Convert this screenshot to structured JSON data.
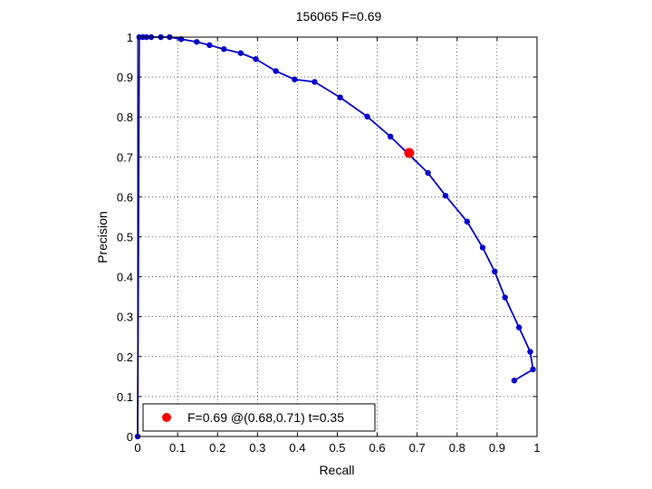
{
  "chart_data": {
    "type": "line",
    "title": "156065 F=0.69",
    "xlabel": "Recall",
    "ylabel": "Precision",
    "xlim": [
      0,
      1
    ],
    "ylim": [
      0,
      1
    ],
    "xticks": [
      0,
      0.1,
      0.2,
      0.3,
      0.4,
      0.5,
      0.6,
      0.7,
      0.8,
      0.9,
      1
    ],
    "yticks": [
      0,
      0.1,
      0.2,
      0.3,
      0.4,
      0.5,
      0.6,
      0.7,
      0.8,
      0.9,
      1
    ],
    "xtick_labels": [
      "0",
      "0.1",
      "0.2",
      "0.3",
      "0.4",
      "0.5",
      "0.6",
      "0.7",
      "0.8",
      "0.9",
      "1"
    ],
    "ytick_labels": [
      "0",
      "0.1",
      "0.2",
      "0.3",
      "0.4",
      "0.5",
      "0.6",
      "0.7",
      "0.8",
      "0.9",
      "1"
    ],
    "grid": true,
    "legend_position": "bottom-left",
    "series": [
      {
        "color": "#0000cc",
        "marker": "dot",
        "points": [
          [
            0.943,
            0.14
          ],
          [
            0.99,
            0.168
          ],
          [
            0.983,
            0.212
          ],
          [
            0.955,
            0.273
          ],
          [
            0.92,
            0.348
          ],
          [
            0.894,
            0.413
          ],
          [
            0.864,
            0.473
          ],
          [
            0.825,
            0.538
          ],
          [
            0.771,
            0.603
          ],
          [
            0.727,
            0.66
          ],
          [
            0.633,
            0.751
          ],
          [
            0.575,
            0.801
          ],
          [
            0.507,
            0.849
          ],
          [
            0.443,
            0.888
          ],
          [
            0.393,
            0.894
          ],
          [
            0.346,
            0.915
          ],
          [
            0.296,
            0.945
          ],
          [
            0.258,
            0.96
          ],
          [
            0.216,
            0.97
          ],
          [
            0.18,
            0.98
          ],
          [
            0.148,
            0.988
          ],
          [
            0.109,
            0.995
          ],
          [
            0.08,
            1.0
          ],
          [
            0.058,
            1.0
          ],
          [
            0.034,
            1.0
          ],
          [
            0.022,
            1.0
          ],
          [
            0.013,
            1.0
          ],
          [
            0.004,
            1.0
          ],
          [
            0.0,
            0.0
          ]
        ]
      }
    ],
    "highlight": {
      "x": 0.68,
      "y": 0.71,
      "color": "#ff0000",
      "label": "F=0.69 @(0.68,0.71) t=0.35"
    }
  }
}
